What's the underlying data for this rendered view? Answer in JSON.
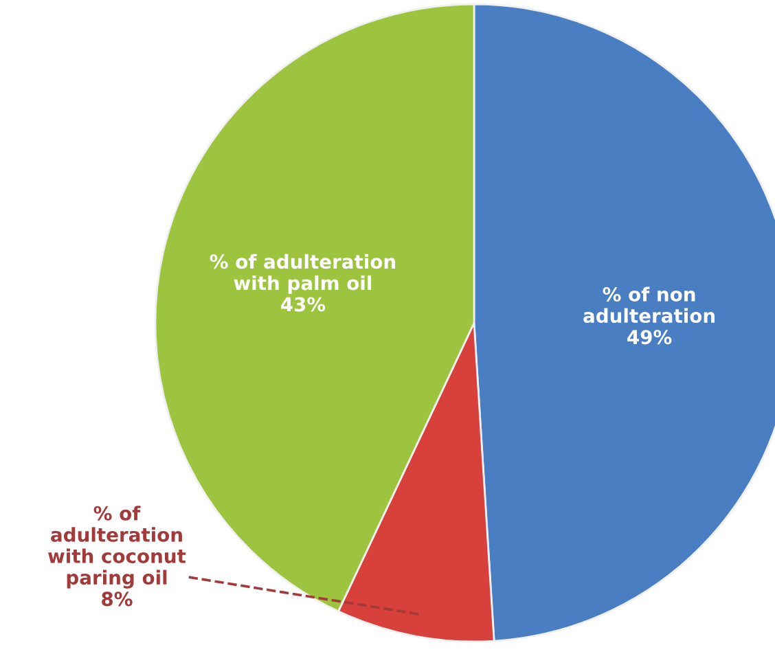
{
  "chart_data": {
    "type": "pie",
    "categories": [
      "% of non\nadulteration",
      "% of\nadulteration\nwith coconut\nparing oil",
      "% of adulteration\nwith palm oil"
    ],
    "values": [
      49,
      8,
      43
    ],
    "colors": [
      "#4a7ec2",
      "#d8403b",
      "#9cc43e"
    ],
    "value_labels": [
      "49%",
      "8%",
      "43%"
    ],
    "legend": false
  }
}
